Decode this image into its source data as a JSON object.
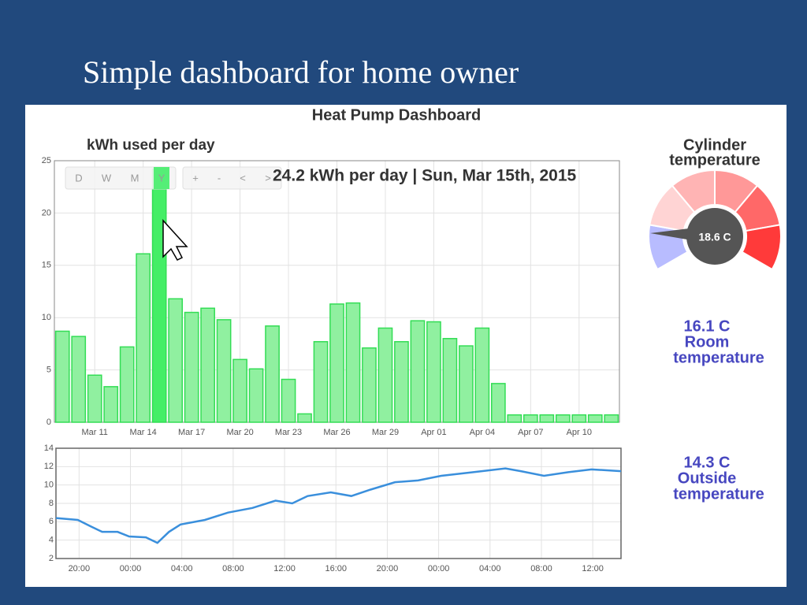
{
  "slide_title": "Simple dashboard for home owner",
  "dashboard_title": "Heat Pump Dashboard",
  "range_buttons": [
    "D",
    "W",
    "M",
    "Y",
    "+",
    "-",
    "<",
    ">"
  ],
  "selected_button": 3,
  "cylinder": {
    "title_lines": [
      "Cylinder",
      "temperature"
    ],
    "reading": "18.6 C"
  },
  "readouts": [
    {
      "reading": "16.1 C",
      "label_lines": [
        "Room",
        "temperature"
      ]
    },
    {
      "reading": "14.3 C",
      "label_lines": [
        "Outside",
        "temperature"
      ]
    }
  ],
  "chart_data": [
    {
      "type": "bar",
      "title": "kWh used per day",
      "categories": [
        null,
        null,
        "Mar 11",
        null,
        null,
        "Mar 14",
        null,
        null,
        "Mar 17",
        null,
        null,
        "Mar 20",
        null,
        null,
        "Mar 23",
        null,
        null,
        "Mar 26",
        null,
        null,
        "Mar 29",
        null,
        null,
        "Apr 01",
        null,
        null,
        "Apr 04",
        null,
        null,
        "Apr 07",
        null,
        null,
        "Apr 10",
        null,
        null
      ],
      "values": [
        8.7,
        8.2,
        4.5,
        3.4,
        7.2,
        16.1,
        24.2,
        11.8,
        10.5,
        10.9,
        9.8,
        6.0,
        5.1,
        9.2,
        4.1,
        0.8,
        7.7,
        11.3,
        11.4,
        7.1,
        9.0,
        7.7,
        9.7,
        9.6,
        8.0,
        7.3,
        9.0,
        3.7,
        0.7,
        0.7,
        0.7,
        0.7,
        0.7,
        0.7,
        0.7
      ],
      "highlight": 6,
      "tooltip": "24.2 kWh per day | Sun, Mar 15th, 2015",
      "color": "#90f0a0",
      "ylim": [
        0,
        25
      ],
      "yticks": [
        0,
        5,
        10,
        15,
        20,
        25
      ],
      "grid": true
    },
    {
      "type": "line",
      "x": [
        -1.8,
        -0.1,
        0.9,
        1.8,
        3.0,
        3.9,
        5.2,
        6.1,
        7.0,
        7.9,
        9.8,
        11.6,
        13.5,
        15.3,
        16.6,
        17.8,
        19.6,
        21.2,
        22.7,
        24.6,
        26.4,
        28.2,
        30.7,
        33.2,
        34.4,
        36.2,
        38.1,
        39.9,
        42.2
      ],
      "values": [
        6.4,
        6.2,
        5.5,
        4.9,
        4.9,
        4.4,
        4.3,
        3.7,
        4.9,
        5.7,
        6.2,
        7.0,
        7.5,
        8.3,
        8.0,
        8.8,
        9.2,
        8.8,
        9.5,
        10.3,
        10.5,
        11.0,
        11.4,
        11.8,
        11.5,
        11.0,
        11.4,
        11.7,
        11.5
      ],
      "color": "#3a8fdc",
      "xlim": [
        -1.8,
        42.2
      ],
      "xticks": [
        {
          "value": 0,
          "label": "20:00"
        },
        {
          "value": 4,
          "label": "00:00"
        },
        {
          "value": 8,
          "label": "04:00"
        },
        {
          "value": 12,
          "label": "08:00"
        },
        {
          "value": 16,
          "label": "12:00"
        },
        {
          "value": 20,
          "label": "16:00"
        },
        {
          "value": 24,
          "label": "20:00"
        },
        {
          "value": 28,
          "label": "00:00"
        },
        {
          "value": 32,
          "label": "04:00"
        },
        {
          "value": 36,
          "label": "08:00"
        },
        {
          "value": 40,
          "label": "12:00"
        }
      ],
      "ylim": [
        2,
        14
      ],
      "yticks": [
        2,
        4,
        6,
        8,
        10,
        12,
        14
      ],
      "grid": true
    }
  ]
}
